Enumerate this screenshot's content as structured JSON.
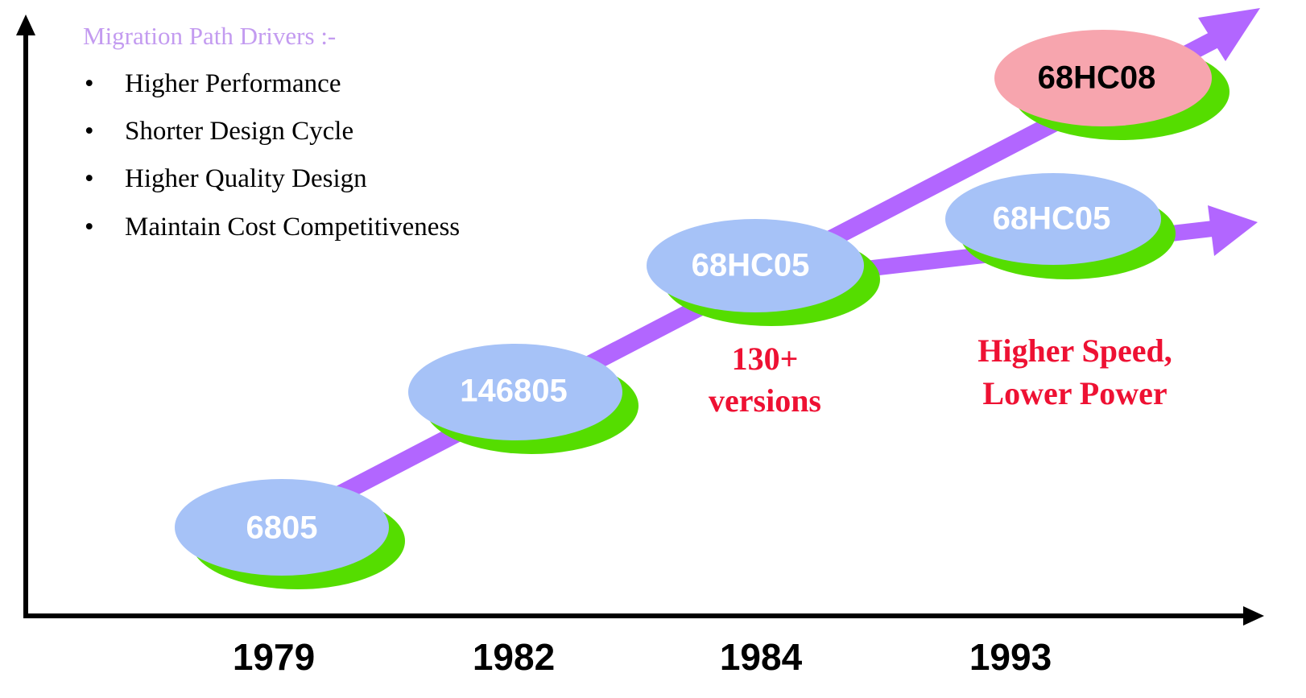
{
  "heading": "Migration Path Drivers :-",
  "bullets": [
    "Higher Performance",
    "Shorter Design Cycle",
    "Higher Quality Design",
    "Maintain Cost Competitiveness"
  ],
  "nodes": [
    {
      "label": "6805"
    },
    {
      "label": "146805"
    },
    {
      "label": "68HC05"
    },
    {
      "label": "68HC05"
    },
    {
      "label": "68HC08"
    }
  ],
  "annotations": [
    {
      "lines": [
        "130+",
        "versions"
      ]
    },
    {
      "lines": [
        "Higher Speed,",
        "Lower Power"
      ]
    }
  ],
  "years": [
    "1979",
    "1982",
    "1984",
    "1993"
  ]
}
